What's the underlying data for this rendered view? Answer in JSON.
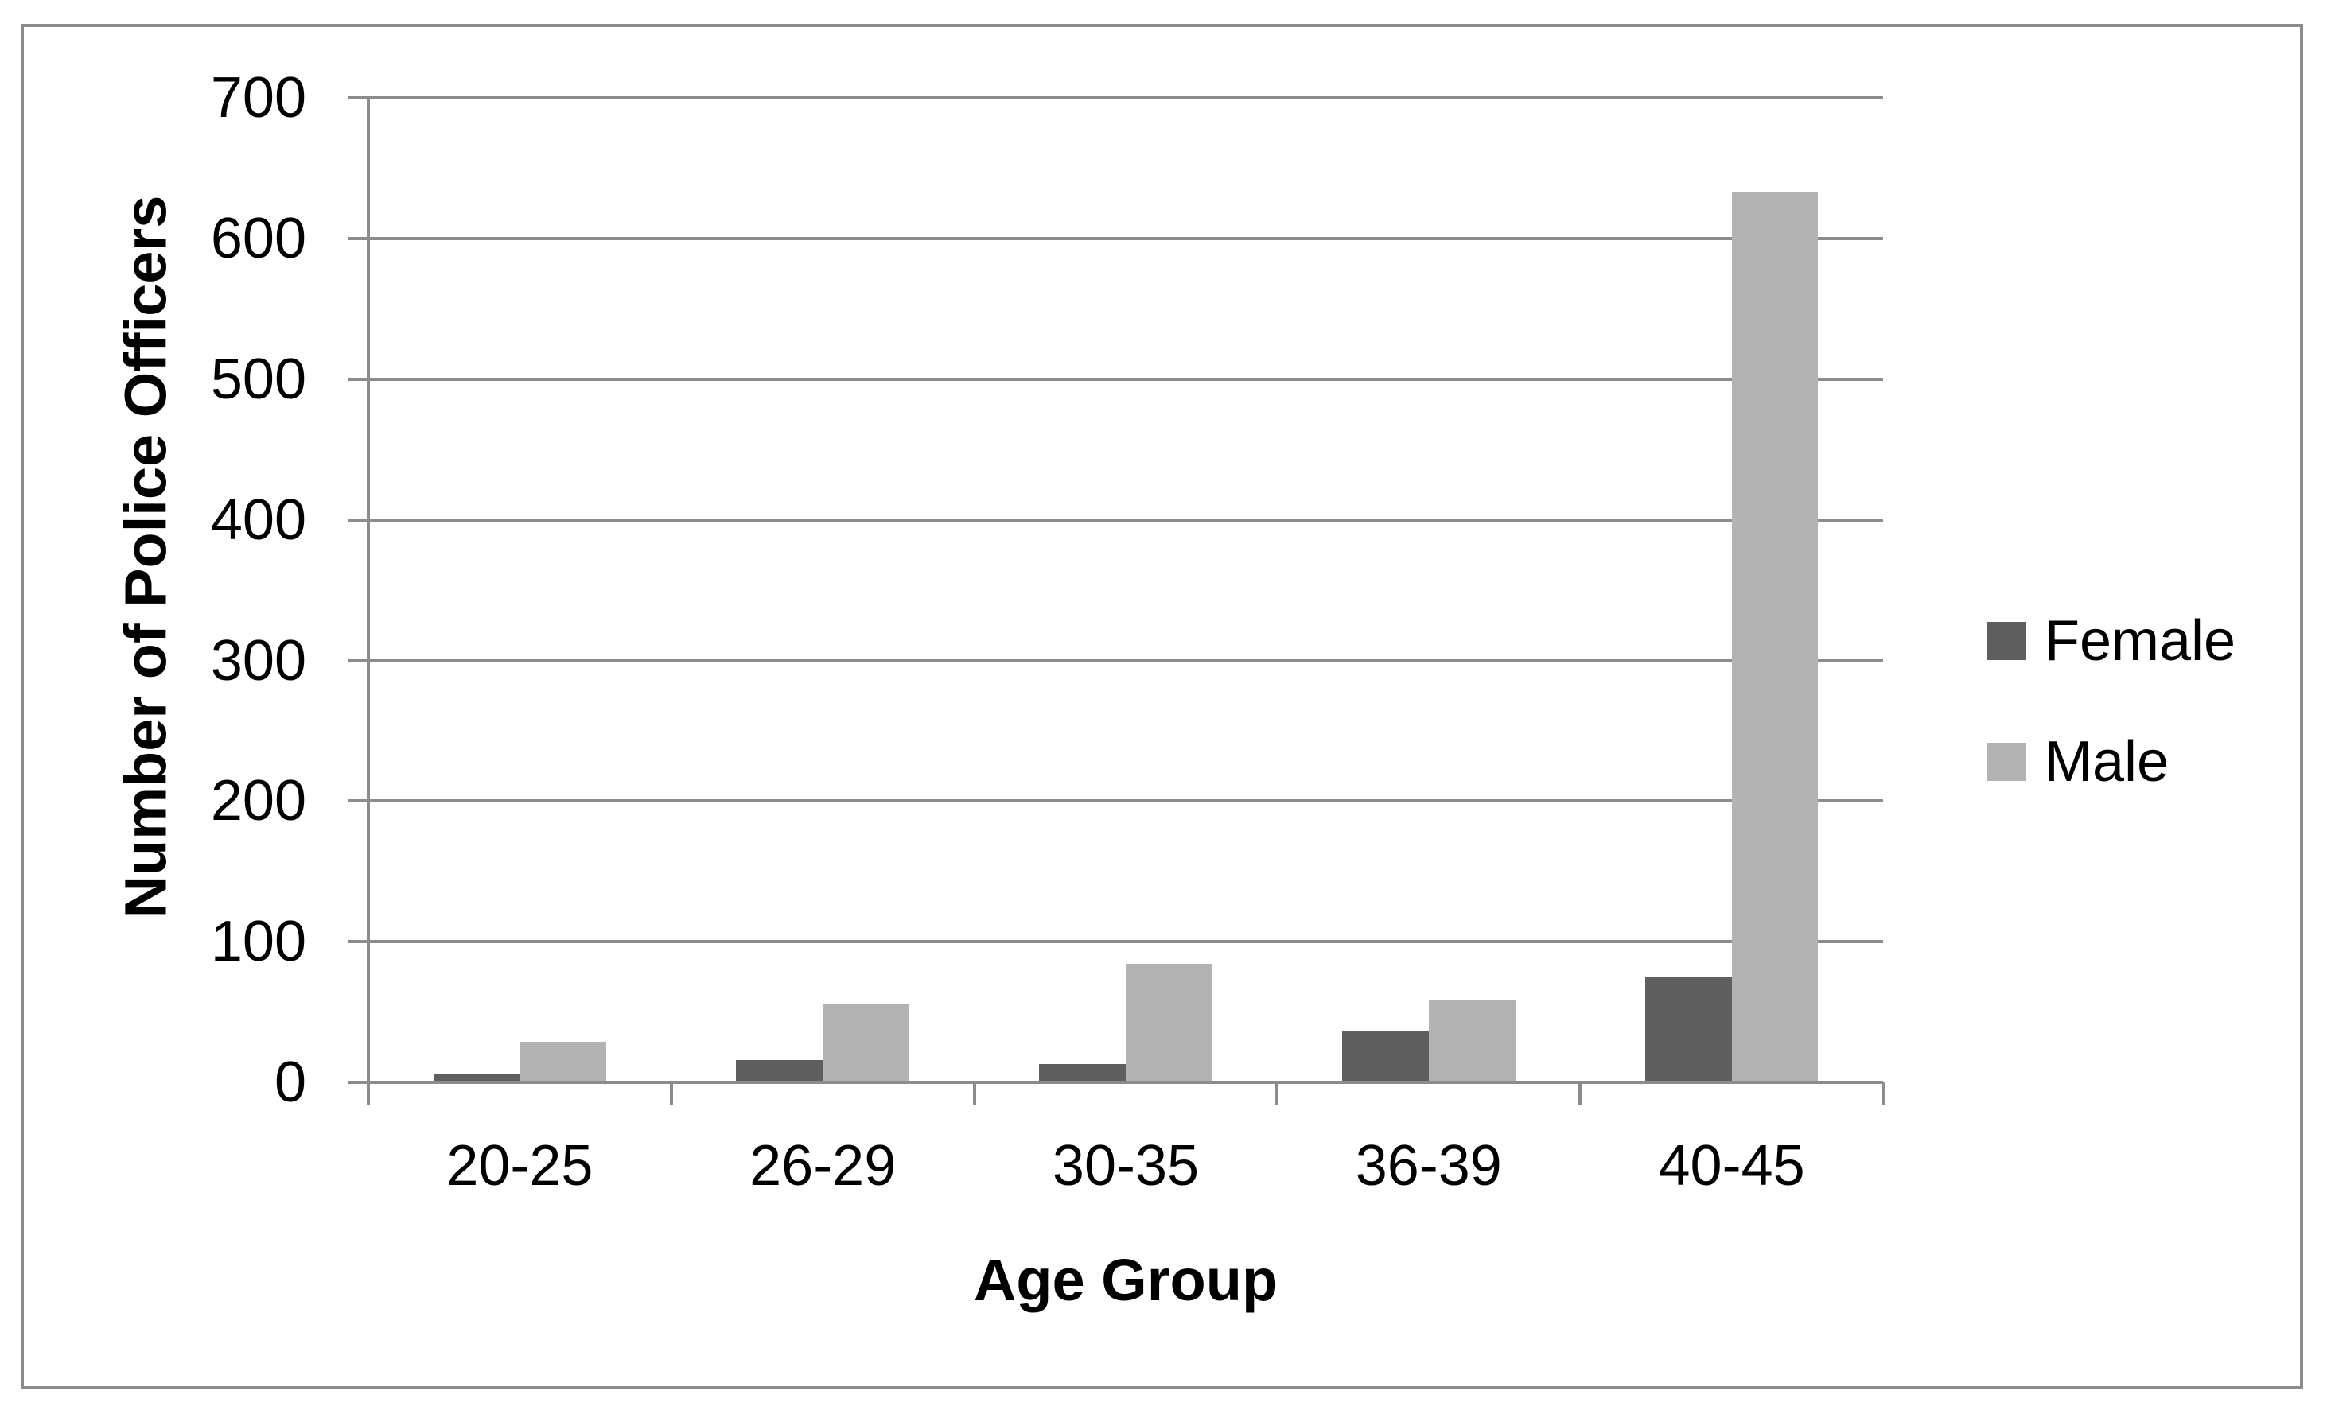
{
  "chart_data": {
    "type": "bar",
    "title": "",
    "categories": [
      "20-25",
      "26-29",
      "30-35",
      "36-39",
      "40-45"
    ],
    "series": [
      {
        "name": "Female",
        "color": "#5f5f5f",
        "values": [
          6,
          16,
          13,
          36,
          75
        ]
      },
      {
        "name": "Male",
        "color": "#b3b3b3",
        "values": [
          29,
          56,
          84,
          58,
          633
        ]
      }
    ],
    "xlabel": "Age Group",
    "ylabel": "Number of Police Officers",
    "ylim": [
      0,
      700
    ],
    "ytick_step": 100,
    "yticks": [
      0,
      100,
      200,
      300,
      400,
      500,
      600,
      700
    ],
    "grid": true,
    "legend_position": "right",
    "colors": {
      "gridline": "#8c8c8c",
      "axis": "#8c8c8c",
      "frame_border": "#8c8c8c",
      "text": "#000000",
      "background": "#ffffff"
    }
  }
}
